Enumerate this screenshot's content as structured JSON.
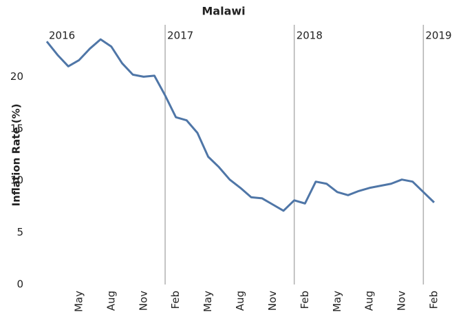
{
  "chart_data": {
    "type": "line",
    "title": "Malawi",
    "y_label": "Inflation Rate (%)",
    "categories": [
      null,
      null,
      null,
      "May",
      null,
      null,
      "Aug",
      null,
      null,
      "Nov",
      null,
      null,
      "Feb",
      null,
      null,
      "May",
      null,
      null,
      "Aug",
      null,
      null,
      "Nov",
      null,
      null,
      "Feb",
      null,
      null,
      "May",
      null,
      null,
      "Aug",
      null,
      null,
      "Nov",
      null,
      null,
      "Feb"
    ],
    "series": [
      {
        "name": "Malawi",
        "color": "#4f76a7",
        "values": [
          23.4,
          22.1,
          21.0,
          21.6,
          22.7,
          23.6,
          22.9,
          21.3,
          20.2,
          20.0,
          20.1,
          18.2,
          16.1,
          15.8,
          14.6,
          12.3,
          11.3,
          10.1,
          9.3,
          8.4,
          8.3,
          7.7,
          7.1,
          8.1,
          7.8,
          9.9,
          9.7,
          8.9,
          8.6,
          9.0,
          9.3,
          9.5,
          9.7,
          10.1,
          9.9,
          8.9,
          7.9
        ]
      }
    ],
    "year_markers": [
      {
        "label": "2016",
        "index": 0
      },
      {
        "label": "2017",
        "index": 11
      },
      {
        "label": "2018",
        "index": 23
      },
      {
        "label": "2019",
        "index": 35
      }
    ],
    "ylim": [
      0,
      25
    ],
    "yticks": [
      0,
      5,
      10,
      15,
      20
    ],
    "grid": false
  }
}
